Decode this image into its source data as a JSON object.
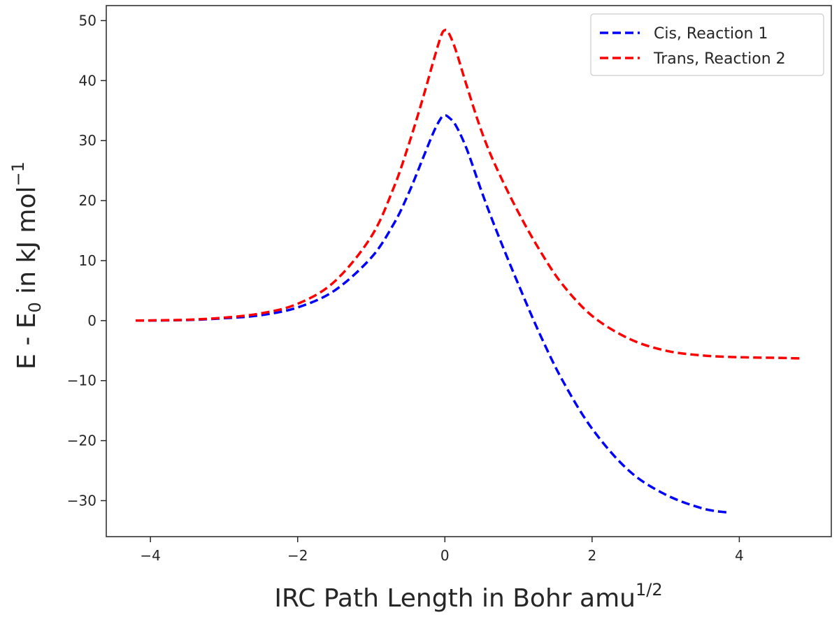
{
  "chart_data": {
    "type": "line",
    "xlabel": "IRC Path Length in  Bohr amu",
    "xlabel_sup": "1/2",
    "ylabel": "E - E",
    "ylabel_sub": "0",
    "ylabel_tail": " in kJ mol",
    "ylabel_sup": "−1",
    "xlim": [
      -4.6,
      5.25
    ],
    "ylim": [
      -36,
      52.5
    ],
    "xticks": [
      {
        "value": -4,
        "label": "−4"
      },
      {
        "value": -2,
        "label": "−2"
      },
      {
        "value": 0,
        "label": "0"
      },
      {
        "value": 2,
        "label": "2"
      },
      {
        "value": 4,
        "label": "4"
      }
    ],
    "yticks": [
      {
        "value": -30,
        "label": "−30"
      },
      {
        "value": -20,
        "label": "−20"
      },
      {
        "value": -10,
        "label": "−10"
      },
      {
        "value": 0,
        "label": "0"
      },
      {
        "value": 10,
        "label": "10"
      },
      {
        "value": 20,
        "label": "20"
      },
      {
        "value": 30,
        "label": "30"
      },
      {
        "value": 40,
        "label": "40"
      },
      {
        "value": 50,
        "label": "50"
      }
    ],
    "grid": false,
    "legend_position": "top-right",
    "series": [
      {
        "name": "Cis, Reaction 1",
        "color": "#0000ff",
        "line_style": "dashed",
        "x": [
          -4.2,
          -3.5,
          -3.0,
          -2.5,
          -2.0,
          -1.5,
          -1.0,
          -0.7,
          -0.5,
          -0.3,
          -0.15,
          -0.05,
          0.0,
          0.05,
          0.15,
          0.3,
          0.5,
          0.7,
          1.0,
          1.3,
          1.6,
          2.0,
          2.5,
          3.0,
          3.5,
          3.85
        ],
        "y": [
          0.0,
          0.1,
          0.4,
          0.9,
          2.2,
          5.0,
          10.5,
          16.0,
          21.0,
          27.0,
          31.5,
          33.8,
          34.2,
          33.9,
          32.5,
          28.5,
          21.5,
          15.0,
          6.0,
          -2.5,
          -10.0,
          -18.0,
          -25.0,
          -29.0,
          -31.3,
          -32.0
        ]
      },
      {
        "name": "Trans, Reaction 2",
        "color": "#ff0000",
        "line_style": "dashed",
        "x": [
          -4.2,
          -3.5,
          -3.0,
          -2.5,
          -2.0,
          -1.5,
          -1.0,
          -0.7,
          -0.5,
          -0.3,
          -0.15,
          -0.05,
          0.0,
          0.05,
          0.15,
          0.3,
          0.5,
          0.7,
          1.0,
          1.3,
          1.6,
          2.0,
          2.5,
          3.0,
          3.5,
          4.0,
          4.5,
          4.85
        ],
        "y": [
          0.0,
          0.15,
          0.5,
          1.2,
          2.8,
          6.5,
          14.0,
          22.0,
          29.0,
          37.0,
          43.5,
          47.5,
          48.4,
          48.0,
          45.0,
          39.0,
          31.5,
          25.5,
          18.0,
          11.5,
          6.0,
          0.8,
          -3.0,
          -5.0,
          -5.8,
          -6.1,
          -6.2,
          -6.3
        ]
      }
    ]
  }
}
